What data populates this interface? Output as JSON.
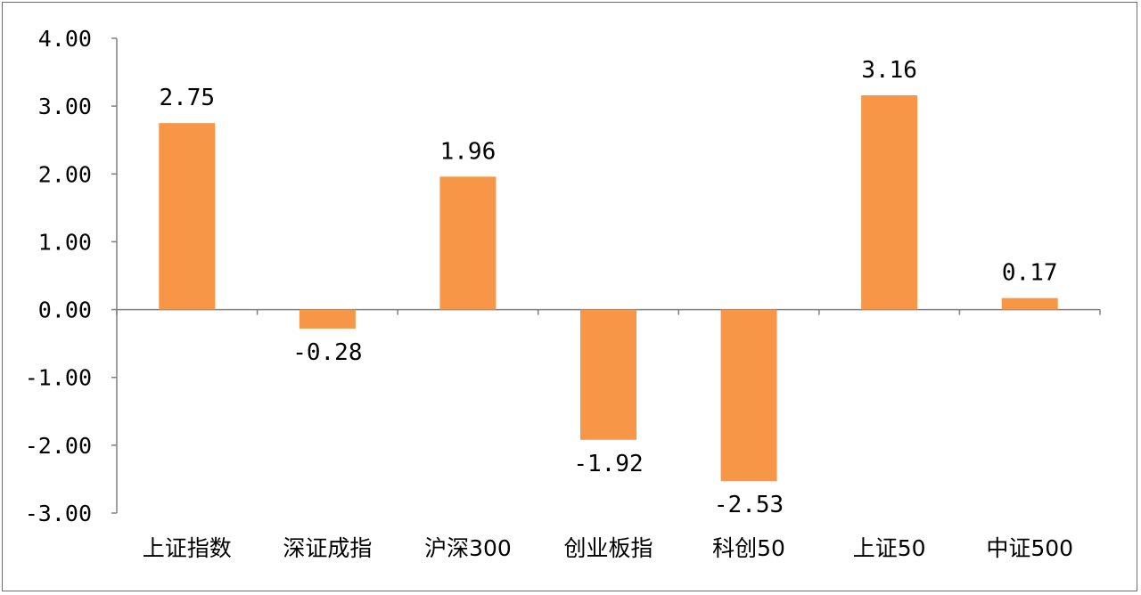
{
  "chart_data": {
    "type": "bar",
    "categories": [
      "上证指数",
      "深证成指",
      "沪深300",
      "创业板指",
      "科创50",
      "上证50",
      "中证500"
    ],
    "series": [
      {
        "values": [
          2.75,
          -0.28,
          1.96,
          -1.92,
          -2.53,
          3.16,
          0.17
        ],
        "data_labels": [
          "2.75",
          "-0.28",
          "1.96",
          "-1.92",
          "-2.53",
          "3.16",
          "0.17"
        ],
        "color": "#F79646"
      }
    ],
    "title": "",
    "xlabel": "",
    "ylabel": "",
    "ylim": [
      -3,
      4
    ],
    "yticks": [
      4,
      3,
      2,
      1,
      0,
      -1,
      -2,
      -3
    ],
    "ytick_labels": [
      "4.00",
      "3.00",
      "2.00",
      "1.00",
      "0.00",
      "-1.00",
      "-2.00",
      "-3.00"
    ],
    "grid": false,
    "legend": "none",
    "axis_color": "#808080"
  }
}
